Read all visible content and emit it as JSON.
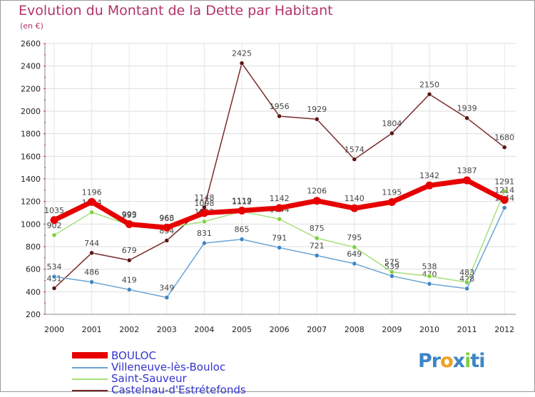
{
  "chart_data": {
    "type": "line",
    "title": "Evolution du Montant de la Dette par Habitant",
    "subtitle": "(en €)",
    "xlabel": "",
    "ylabel": "",
    "ylim": [
      200,
      2600
    ],
    "yticks": [
      200,
      400,
      600,
      800,
      1000,
      1200,
      1400,
      1600,
      1800,
      2000,
      2200,
      2400,
      2600
    ],
    "categories": [
      "2000",
      "2001",
      "2002",
      "2003",
      "2004",
      "2005",
      "2006",
      "2007",
      "2008",
      "2009",
      "2010",
      "2011",
      "2012"
    ],
    "series": [
      {
        "name": "Castelnau-d'Estrétefonds",
        "color": "#7a2a2a",
        "marker": "#5c1414",
        "label_color": "#444444",
        "values": [
          431,
          744,
          679,
          854,
          1148,
          2425,
          1956,
          1929,
          1574,
          1804,
          2150,
          1939,
          1680
        ]
      },
      {
        "name": "Villeneuve-lès-Bouloc",
        "color": "#6aa3d5",
        "marker": "#3d85c6",
        "label_color": "#444444",
        "values": [
          534,
          486,
          419,
          349,
          831,
          865,
          791,
          721,
          649,
          539,
          470,
          428,
          1144
        ]
      },
      {
        "name": "Saint-Sauveur",
        "color": "#a6e07a",
        "marker": "#7fd13b",
        "label_color": "#444444",
        "values": [
          902,
          1104,
          993,
          965,
          1022,
          1112,
          1044,
          875,
          795,
          575,
          538,
          483,
          1291
        ]
      },
      {
        "name": "BOULOC",
        "color": "#e60000",
        "marker": "#e60000",
        "label_color": "#444444",
        "values": [
          1035,
          1196,
          999,
          968,
          1098,
          1119,
          1142,
          1206,
          1140,
          1195,
          1342,
          1387,
          1214
        ]
      }
    ],
    "legend": [
      {
        "label": "BOULOC",
        "color": "#e60000",
        "text_color": "#3333cc"
      },
      {
        "label": "Villeneuve-lès-Bouloc",
        "color": "#6aa3d5",
        "text_color": "#3333cc"
      },
      {
        "label": "Saint-Sauveur",
        "color": "#a6e07a",
        "text_color": "#3333cc"
      },
      {
        "label": "Castelnau-d'Estrétefonds",
        "color": "#7a2a2a",
        "text_color": "#3333cc"
      }
    ],
    "legend_position": "bottom-left"
  },
  "logo": {
    "parts": [
      "Pr",
      "o",
      "x",
      "i",
      "ti"
    ],
    "colors": [
      "#3d85c6",
      "#f0a020",
      "#3d85c6",
      "#7fd13b",
      "#3d85c6"
    ]
  }
}
